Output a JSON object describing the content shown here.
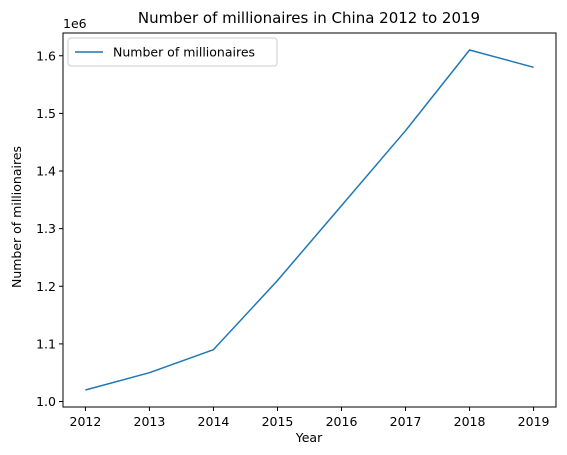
{
  "chart_data": {
    "type": "line",
    "title": "Number of millionaires in China 2012 to 2019",
    "xlabel": "Year",
    "ylabel": "Number of millionaires",
    "y_offset_label": "1e6",
    "x": [
      2012,
      2013,
      2014,
      2015,
      2016,
      2017,
      2018,
      2019
    ],
    "series": [
      {
        "name": "Number of millionaires",
        "values": [
          1020000,
          1050000,
          1090000,
          1210000,
          1340000,
          1470000,
          1610000,
          1580000
        ],
        "color": "#1f77b4"
      }
    ],
    "xlim": [
      2011.65,
      2019.35
    ],
    "ylim": [
      0.9905,
      1.6395
    ],
    "x_ticks": [
      "2012",
      "2013",
      "2014",
      "2015",
      "2016",
      "2017",
      "2018",
      "2019"
    ],
    "y_ticks": [
      "1.0",
      "1.1",
      "1.2",
      "1.3",
      "1.4",
      "1.5",
      "1.6"
    ],
    "y_tick_values": [
      1.0,
      1.1,
      1.2,
      1.3,
      1.4,
      1.5,
      1.6
    ],
    "grid": false,
    "legend_position": "top-left"
  }
}
